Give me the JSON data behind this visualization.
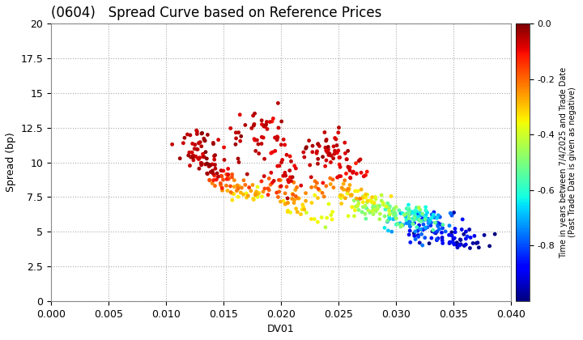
{
  "title": "(0604)   Spread Curve based on Reference Prices",
  "xlabel": "DV01",
  "ylabel": "Spread (bp)",
  "xlim": [
    0.0,
    0.04
  ],
  "ylim": [
    0.0,
    20.0
  ],
  "xticks": [
    0.0,
    0.005,
    0.01,
    0.015,
    0.02,
    0.025,
    0.03,
    0.035,
    0.04
  ],
  "yticks": [
    0.0,
    2.5,
    5.0,
    7.5,
    10.0,
    12.5,
    15.0,
    17.5,
    20.0
  ],
  "colorbar_label": "Time in years between 7/4/2025 and Trade Date\n(Past Trade Date is given as negative)",
  "colorbar_ticks": [
    0.0,
    -0.2,
    -0.4,
    -0.6,
    -0.8
  ],
  "cmap": "jet",
  "color_vmin": -1.0,
  "color_vmax": 0.0,
  "marker_size": 12,
  "background_color": "#ffffff",
  "grid_color": "#aaaaaa",
  "title_fontsize": 12,
  "axis_fontsize": 9,
  "figsize": [
    7.2,
    4.2
  ],
  "dpi": 100
}
